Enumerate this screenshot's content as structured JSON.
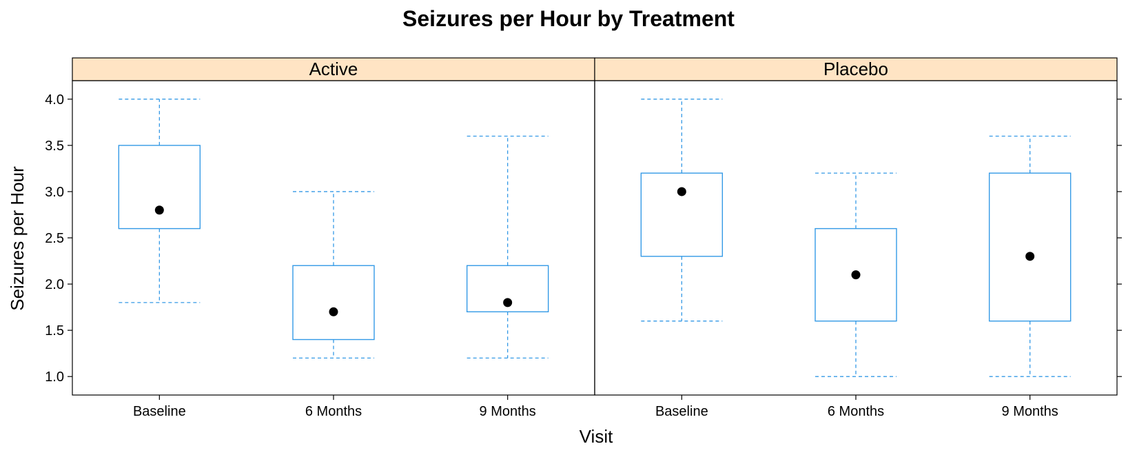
{
  "chart_data": {
    "type": "box",
    "title": "Seizures per Hour by Treatment",
    "xlabel": "Visit",
    "ylabel": "Seizures per Hour",
    "ylim": [
      0.8,
      4.2
    ],
    "yticks": [
      "1.0",
      "1.5",
      "2.0",
      "2.5",
      "3.0",
      "3.5",
      "4.0"
    ],
    "categories": [
      "Baseline",
      "6 Months",
      "9 Months"
    ],
    "colors": {
      "box": "#3399e6",
      "median": "#000000",
      "strip": "#ffe4c4"
    },
    "panels": [
      {
        "name": "Active",
        "boxes": [
          {
            "category": "Baseline",
            "min": 1.8,
            "q1": 2.6,
            "median": 2.8,
            "q3": 3.5,
            "max": 4.0
          },
          {
            "category": "6 Months",
            "min": 1.2,
            "q1": 1.4,
            "median": 1.7,
            "q3": 2.2,
            "max": 3.0
          },
          {
            "category": "9 Months",
            "min": 1.2,
            "q1": 1.7,
            "median": 1.8,
            "q3": 2.2,
            "max": 3.6
          }
        ]
      },
      {
        "name": "Placebo",
        "boxes": [
          {
            "category": "Baseline",
            "min": 1.6,
            "q1": 2.3,
            "median": 3.0,
            "q3": 3.2,
            "max": 4.0
          },
          {
            "category": "6 Months",
            "min": 1.0,
            "q1": 1.6,
            "median": 2.1,
            "q3": 2.6,
            "max": 3.2
          },
          {
            "category": "9 Months",
            "min": 1.0,
            "q1": 1.6,
            "median": 2.3,
            "q3": 3.2,
            "max": 3.6
          }
        ]
      }
    ]
  }
}
